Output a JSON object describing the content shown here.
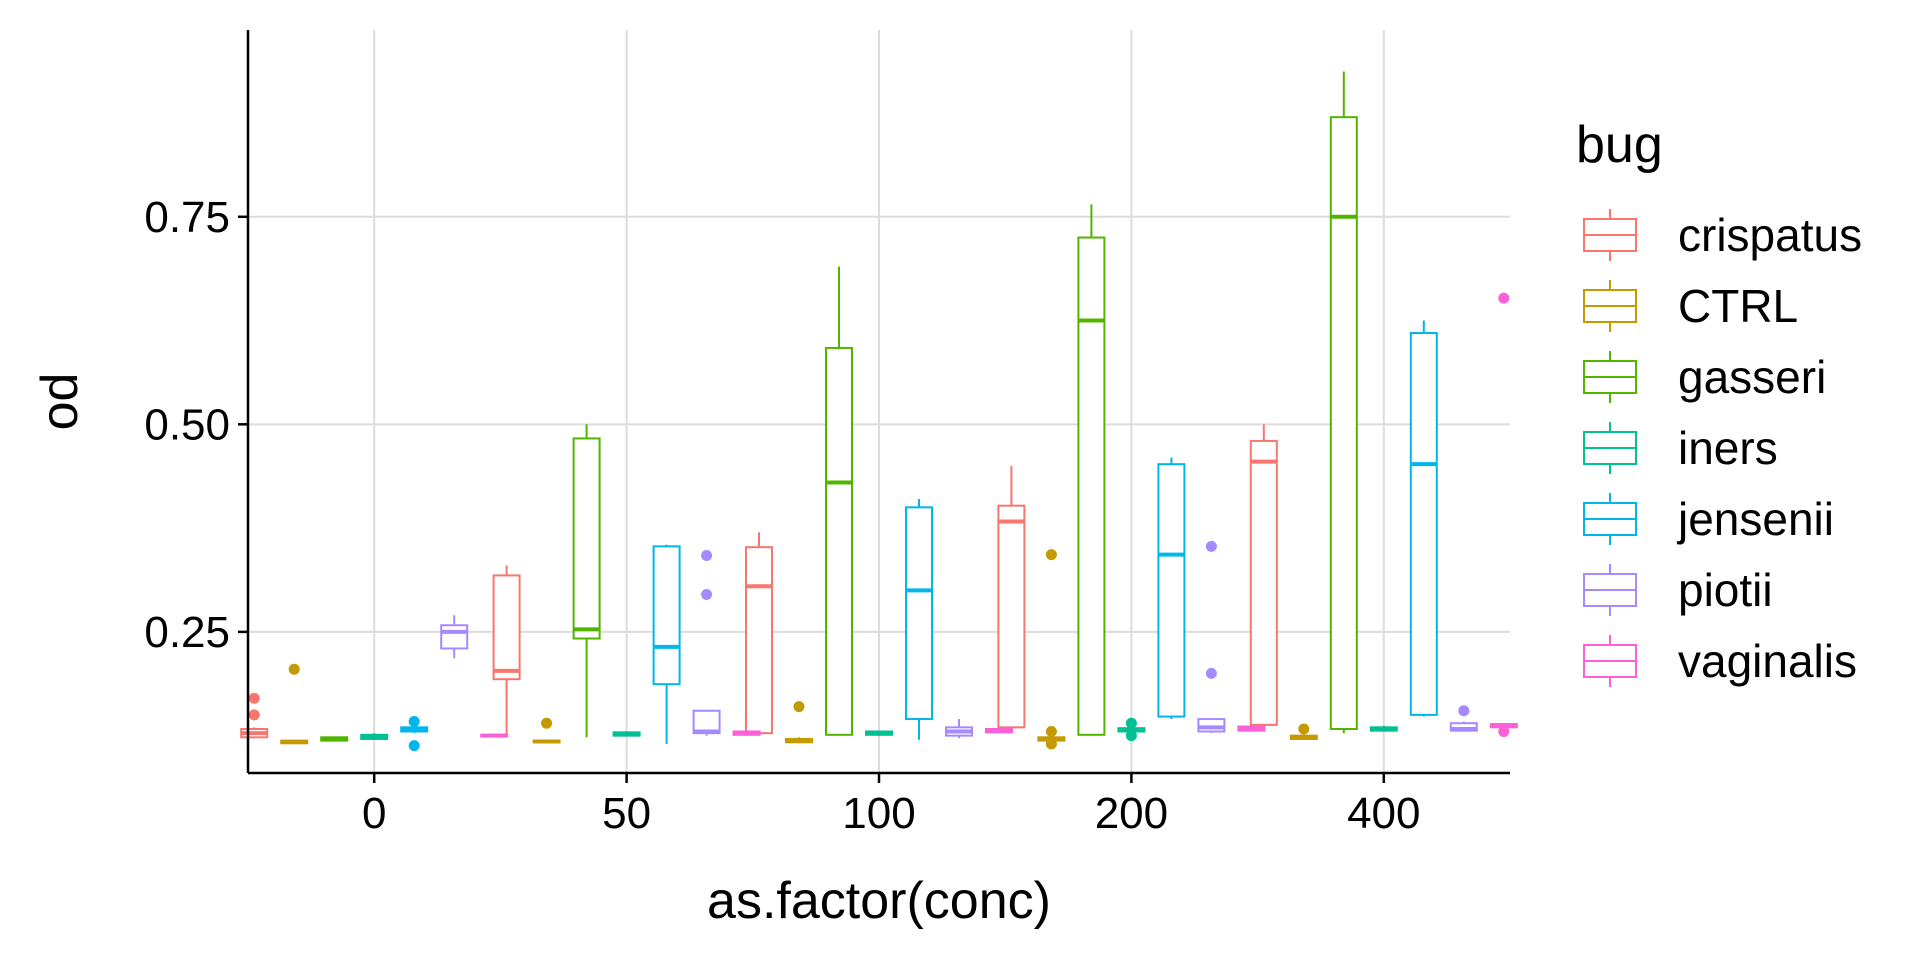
{
  "chart_data": {
    "type": "boxplot",
    "xlabel": "as.factor(conc)",
    "ylabel": "od",
    "categories": [
      "0",
      "50",
      "100",
      "200",
      "400"
    ],
    "ylim": [
      0.08,
      0.975
    ],
    "yticks": [
      0.25,
      0.5,
      0.75
    ],
    "ytick_labels": [
      "0.25",
      "0.50",
      "0.75"
    ],
    "grid": true,
    "legend": {
      "title": "bug",
      "placement": "right"
    },
    "series": [
      {
        "name": "crispatus",
        "color": "#F8766D",
        "boxes": [
          {
            "category": "0",
            "min": 0.123,
            "q1": 0.123,
            "median": 0.128,
            "q3": 0.133,
            "max": 0.135,
            "outliers": [
              0.15,
              0.17
            ]
          },
          {
            "category": "50",
            "min": 0.123,
            "q1": 0.193,
            "median": 0.203,
            "q3": 0.318,
            "max": 0.33,
            "outliers": []
          },
          {
            "category": "100",
            "min": 0.128,
            "q1": 0.128,
            "median": 0.305,
            "q3": 0.352,
            "max": 0.37,
            "outliers": []
          },
          {
            "category": "200",
            "min": 0.135,
            "q1": 0.135,
            "median": 0.383,
            "q3": 0.402,
            "max": 0.45,
            "outliers": []
          },
          {
            "category": "400",
            "min": 0.138,
            "q1": 0.138,
            "median": 0.455,
            "q3": 0.48,
            "max": 0.5,
            "outliers": []
          }
        ]
      },
      {
        "name": "CTRL",
        "color": "#C49A00",
        "boxes": [
          {
            "category": "0",
            "min": 0.115,
            "q1": 0.116,
            "median": 0.117,
            "q3": 0.119,
            "max": 0.12,
            "outliers": [
              0.205
            ]
          },
          {
            "category": "50",
            "min": 0.116,
            "q1": 0.117,
            "median": 0.118,
            "q3": 0.119,
            "max": 0.12,
            "outliers": [
              0.14
            ]
          },
          {
            "category": "100",
            "min": 0.116,
            "q1": 0.117,
            "median": 0.119,
            "q3": 0.121,
            "max": 0.123,
            "outliers": [
              0.16
            ]
          },
          {
            "category": "200",
            "min": 0.117,
            "q1": 0.119,
            "median": 0.121,
            "q3": 0.123,
            "max": 0.125,
            "outliers": [
              0.343,
              0.13,
              0.115
            ]
          },
          {
            "category": "400",
            "min": 0.12,
            "q1": 0.121,
            "median": 0.123,
            "q3": 0.125,
            "max": 0.126,
            "outliers": [
              0.133
            ]
          }
        ]
      },
      {
        "name": "gasseri",
        "color": "#53B400",
        "boxes": [
          {
            "category": "0",
            "min": 0.118,
            "q1": 0.119,
            "median": 0.121,
            "q3": 0.123,
            "max": 0.124,
            "outliers": []
          },
          {
            "category": "50",
            "min": 0.123,
            "q1": 0.242,
            "median": 0.253,
            "q3": 0.483,
            "max": 0.5,
            "outliers": []
          },
          {
            "category": "100",
            "min": 0.126,
            "q1": 0.126,
            "median": 0.43,
            "q3": 0.592,
            "max": 0.69,
            "outliers": []
          },
          {
            "category": "200",
            "min": 0.126,
            "q1": 0.126,
            "median": 0.625,
            "q3": 0.725,
            "max": 0.765,
            "outliers": []
          },
          {
            "category": "400",
            "min": 0.128,
            "q1": 0.133,
            "median": 0.75,
            "q3": 0.87,
            "max": 0.925,
            "outliers": []
          }
        ]
      },
      {
        "name": "iners",
        "color": "#00C094",
        "boxes": [
          {
            "category": "0",
            "min": 0.12,
            "q1": 0.121,
            "median": 0.123,
            "q3": 0.126,
            "max": 0.128,
            "outliers": []
          },
          {
            "category": "50",
            "min": 0.124,
            "q1": 0.125,
            "median": 0.127,
            "q3": 0.129,
            "max": 0.13,
            "outliers": []
          },
          {
            "category": "100",
            "min": 0.125,
            "q1": 0.126,
            "median": 0.128,
            "q3": 0.13,
            "max": 0.131,
            "outliers": []
          },
          {
            "category": "200",
            "min": 0.128,
            "q1": 0.13,
            "median": 0.132,
            "q3": 0.134,
            "max": 0.136,
            "outliers": [
              0.14,
              0.125
            ]
          },
          {
            "category": "400",
            "min": 0.13,
            "q1": 0.131,
            "median": 0.133,
            "q3": 0.135,
            "max": 0.137,
            "outliers": []
          }
        ]
      },
      {
        "name": "jensenii",
        "color": "#00B6EB",
        "boxes": [
          {
            "category": "0",
            "min": 0.128,
            "q1": 0.13,
            "median": 0.132,
            "q3": 0.135,
            "max": 0.137,
            "outliers": [
              0.142,
              0.113
            ]
          },
          {
            "category": "50",
            "min": 0.115,
            "q1": 0.187,
            "median": 0.232,
            "q3": 0.353,
            "max": 0.355,
            "outliers": []
          },
          {
            "category": "100",
            "min": 0.12,
            "q1": 0.145,
            "median": 0.3,
            "q3": 0.4,
            "max": 0.41,
            "outliers": []
          },
          {
            "category": "200",
            "min": 0.145,
            "q1": 0.148,
            "median": 0.343,
            "q3": 0.452,
            "max": 0.46,
            "outliers": []
          },
          {
            "category": "400",
            "min": 0.148,
            "q1": 0.15,
            "median": 0.452,
            "q3": 0.61,
            "max": 0.625,
            "outliers": []
          }
        ]
      },
      {
        "name": "piotii",
        "color": "#A58AFF",
        "boxes": [
          {
            "category": "0",
            "min": 0.218,
            "q1": 0.23,
            "median": 0.25,
            "q3": 0.258,
            "max": 0.27,
            "outliers": []
          },
          {
            "category": "50",
            "min": 0.125,
            "q1": 0.128,
            "median": 0.13,
            "q3": 0.155,
            "max": 0.155,
            "outliers": [
              0.342,
              0.295
            ]
          },
          {
            "category": "100",
            "min": 0.122,
            "q1": 0.125,
            "median": 0.13,
            "q3": 0.135,
            "max": 0.145,
            "outliers": []
          },
          {
            "category": "200",
            "min": 0.128,
            "q1": 0.13,
            "median": 0.135,
            "q3": 0.145,
            "max": 0.145,
            "outliers": [
              0.353,
              0.2
            ]
          },
          {
            "category": "400",
            "min": 0.13,
            "q1": 0.131,
            "median": 0.133,
            "q3": 0.14,
            "max": 0.142,
            "outliers": [
              0.155
            ]
          }
        ]
      },
      {
        "name": "vaginalis",
        "color": "#FB61D7",
        "boxes": [
          {
            "category": "0",
            "min": 0.123,
            "q1": 0.124,
            "median": 0.125,
            "q3": 0.126,
            "max": 0.127,
            "outliers": []
          },
          {
            "category": "50",
            "min": 0.125,
            "q1": 0.126,
            "median": 0.128,
            "q3": 0.13,
            "max": 0.132,
            "outliers": []
          },
          {
            "category": "100",
            "min": 0.128,
            "q1": 0.129,
            "median": 0.131,
            "q3": 0.133,
            "max": 0.134,
            "outliers": []
          },
          {
            "category": "200",
            "min": 0.13,
            "q1": 0.131,
            "median": 0.133,
            "q3": 0.136,
            "max": 0.137,
            "outliers": []
          },
          {
            "category": "400",
            "min": 0.133,
            "q1": 0.135,
            "median": 0.137,
            "q3": 0.139,
            "max": 0.14,
            "outliers": [
              0.652,
              0.13
            ]
          }
        ]
      }
    ]
  }
}
